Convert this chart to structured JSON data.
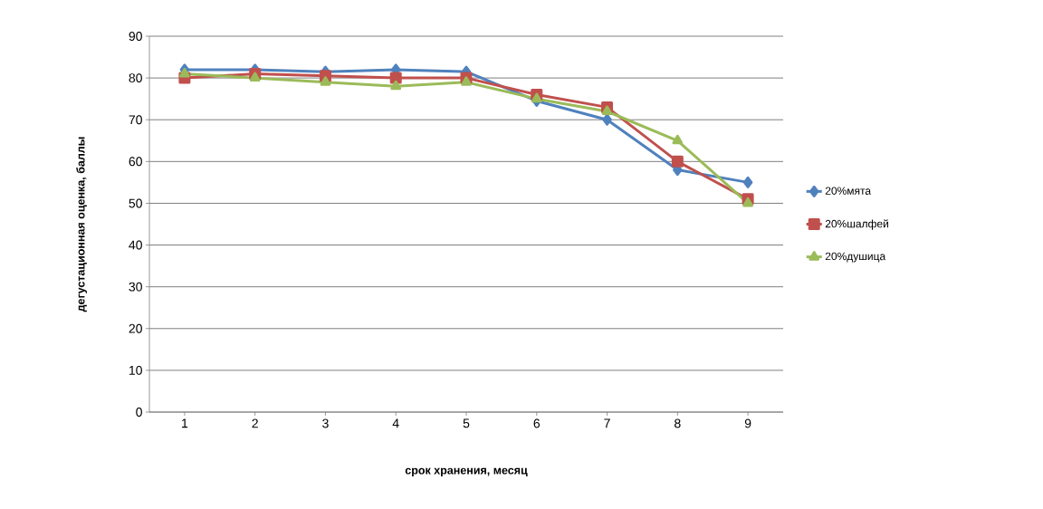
{
  "chart_data": {
    "type": "line",
    "xlabel": "срок хранения, месяц",
    "ylabel": "дегустационная оценка, баллы",
    "categories": [
      "1",
      "2",
      "3",
      "4",
      "5",
      "6",
      "7",
      "8",
      "9"
    ],
    "ylim": [
      0,
      90
    ],
    "yticks": [
      0,
      10,
      20,
      30,
      40,
      50,
      60,
      70,
      80,
      90
    ],
    "grid": "y",
    "legend": "right",
    "series": [
      {
        "name": "20%мята",
        "color": "#4f81bd",
        "marker": "diamond",
        "values": [
          82,
          82,
          81.5,
          82,
          81.5,
          74.5,
          70,
          58,
          55
        ]
      },
      {
        "name": "20%шалфей",
        "color": "#c0504d",
        "marker": "square",
        "values": [
          80,
          81,
          80.5,
          80,
          80,
          76,
          73,
          60,
          51
        ]
      },
      {
        "name": "20%душица",
        "color": "#9bbb59",
        "marker": "triangle",
        "values": [
          81,
          80,
          79,
          78,
          79,
          75,
          72,
          65,
          50
        ]
      }
    ]
  }
}
